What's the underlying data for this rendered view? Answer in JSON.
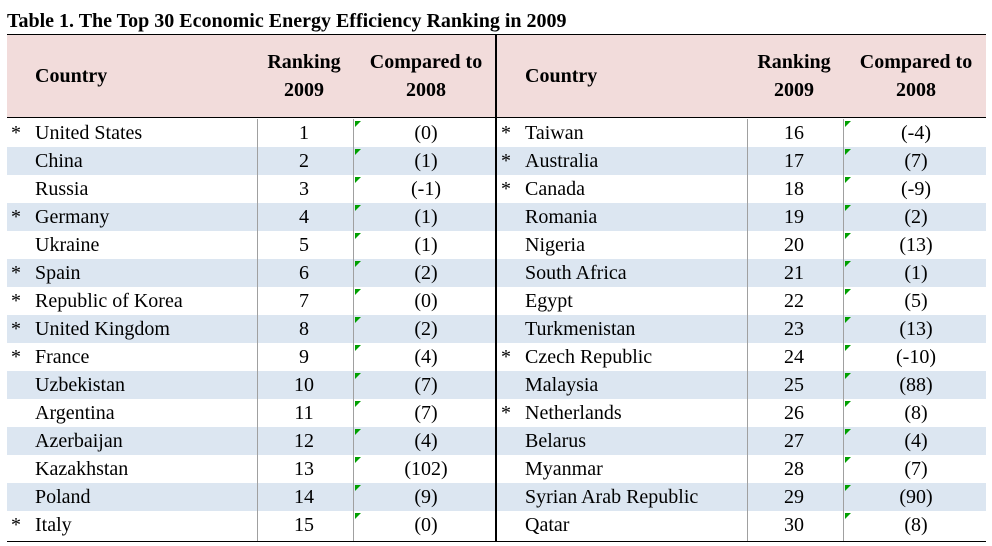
{
  "title": "Table 1. The Top 30 Economic Energy Efficiency Ranking in 2009",
  "headers": {
    "country": "Country",
    "ranking_line1": "Ranking",
    "ranking_line2": "2009",
    "compared_line1": "Compared to",
    "compared_line2": "2008"
  },
  "left_rows": [
    {
      "star": "*",
      "country": "United States",
      "rank": "1",
      "compared": "(0)"
    },
    {
      "star": "",
      "country": "China",
      "rank": "2",
      "compared": "(1)"
    },
    {
      "star": "",
      "country": "Russia",
      "rank": "3",
      "compared": "(-1)"
    },
    {
      "star": "*",
      "country": "Germany",
      "rank": "4",
      "compared": "(1)"
    },
    {
      "star": "",
      "country": "Ukraine",
      "rank": "5",
      "compared": "(1)"
    },
    {
      "star": "*",
      "country": "Spain",
      "rank": "6",
      "compared": "(2)"
    },
    {
      "star": "*",
      "country": "Republic of Korea",
      "rank": "7",
      "compared": "(0)"
    },
    {
      "star": "*",
      "country": "United Kingdom",
      "rank": "8",
      "compared": "(2)"
    },
    {
      "star": "*",
      "country": "France",
      "rank": "9",
      "compared": "(4)"
    },
    {
      "star": "",
      "country": "Uzbekistan",
      "rank": "10",
      "compared": "(7)"
    },
    {
      "star": "",
      "country": "Argentina",
      "rank": "11",
      "compared": "(7)"
    },
    {
      "star": "",
      "country": "Azerbaijan",
      "rank": "12",
      "compared": "(4)"
    },
    {
      "star": "",
      "country": "Kazakhstan",
      "rank": "13",
      "compared": "(102)"
    },
    {
      "star": "",
      "country": "Poland",
      "rank": "14",
      "compared": "(9)"
    },
    {
      "star": "*",
      "country": "Italy",
      "rank": "15",
      "compared": "(0)"
    }
  ],
  "right_rows": [
    {
      "star": "*",
      "country": "Taiwan",
      "rank": "16",
      "compared": "(-4)"
    },
    {
      "star": "*",
      "country": "Australia",
      "rank": "17",
      "compared": "(7)"
    },
    {
      "star": "*",
      "country": "Canada",
      "rank": "18",
      "compared": "(-9)"
    },
    {
      "star": "",
      "country": "Romania",
      "rank": "19",
      "compared": "(2)"
    },
    {
      "star": "",
      "country": "Nigeria",
      "rank": "20",
      "compared": "(13)"
    },
    {
      "star": "",
      "country": "South Africa",
      "rank": "21",
      "compared": "(1)"
    },
    {
      "star": "",
      "country": "Egypt",
      "rank": "22",
      "compared": "(5)"
    },
    {
      "star": "",
      "country": "Turkmenistan",
      "rank": "23",
      "compared": "(13)"
    },
    {
      "star": "*",
      "country": "Czech Republic",
      "rank": "24",
      "compared": "(-10)"
    },
    {
      "star": "",
      "country": "Malaysia",
      "rank": "25",
      "compared": "(88)"
    },
    {
      "star": "*",
      "country": "Netherlands",
      "rank": "26",
      "compared": "(8)"
    },
    {
      "star": "",
      "country": "Belarus",
      "rank": "27",
      "compared": "(4)"
    },
    {
      "star": "",
      "country": "Myanmar",
      "rank": "28",
      "compared": "(7)"
    },
    {
      "star": "",
      "country": "Syrian Arab Republic",
      "rank": "29",
      "compared": "(90)"
    },
    {
      "star": "",
      "country": "Qatar",
      "rank": "30",
      "compared": "(8)"
    }
  ],
  "colors": {
    "header_bg": "#f2dcdb",
    "alt_row_bg": "#dce6f1",
    "marker": "#00a000"
  }
}
